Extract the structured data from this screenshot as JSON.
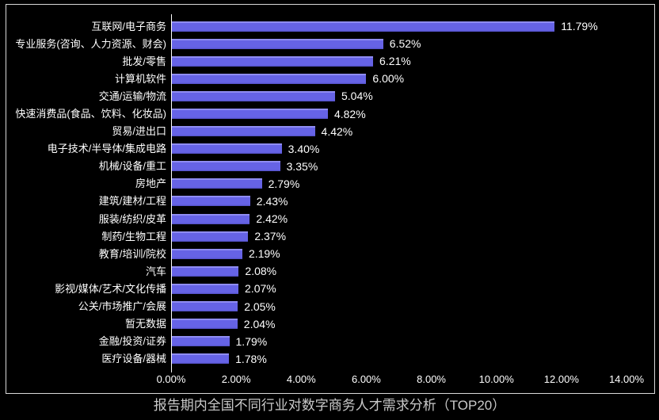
{
  "title": "报告期内全国不同行业对数字商务人才需求分析（TOP20）",
  "colors": {
    "background": "#000000",
    "frame_border": "#d8d8d8",
    "bar": "#6663e6",
    "bar_highlight": "#8f8cf2",
    "bar_shadow": "#504dc2",
    "text": "#ffffff",
    "title_text": "#c9c9c9"
  },
  "chart_data": {
    "type": "bar",
    "orientation": "horizontal",
    "title": "报告期内全国不同行业对数字商务人才需求分析（TOP20）",
    "xlabel": "",
    "ylabel": "",
    "xlim": [
      0,
      14
    ],
    "grid": false,
    "legend": false,
    "categories": [
      "互联网/电子商务",
      "专业服务(咨询、人力资源、财会)",
      "批发/零售",
      "计算机软件",
      "交通/运输/物流",
      "快速消费品(食品、饮料、化妆品)",
      "贸易/进出口",
      "电子技术/半导体/集成电路",
      "机械/设备/重工",
      "房地产",
      "建筑/建材/工程",
      "服装/纺织/皮革",
      "制药/生物工程",
      "教育/培训/院校",
      "汽车",
      "影视/媒体/艺术/文化传播",
      "公关/市场推广/会展",
      "暂无数据",
      "金融/投资/证券",
      "医疗设备/器械"
    ],
    "values": [
      11.79,
      6.52,
      6.21,
      6.0,
      5.04,
      4.82,
      4.42,
      3.4,
      3.35,
      2.79,
      2.43,
      2.42,
      2.37,
      2.19,
      2.08,
      2.07,
      2.05,
      2.04,
      1.79,
      1.78
    ],
    "value_labels": [
      "11.79%",
      "6.52%",
      "6.21%",
      "6.00%",
      "5.04%",
      "4.82%",
      "4.42%",
      "3.40%",
      "3.35%",
      "2.79%",
      "2.43%",
      "2.42%",
      "2.37%",
      "2.19%",
      "2.08%",
      "2.07%",
      "2.05%",
      "2.04%",
      "1.79%",
      "1.78%"
    ],
    "x_ticks": [
      "0.00%",
      "2.00%",
      "4.00%",
      "6.00%",
      "8.00%",
      "10.00%",
      "12.00%",
      "14.00%"
    ]
  }
}
